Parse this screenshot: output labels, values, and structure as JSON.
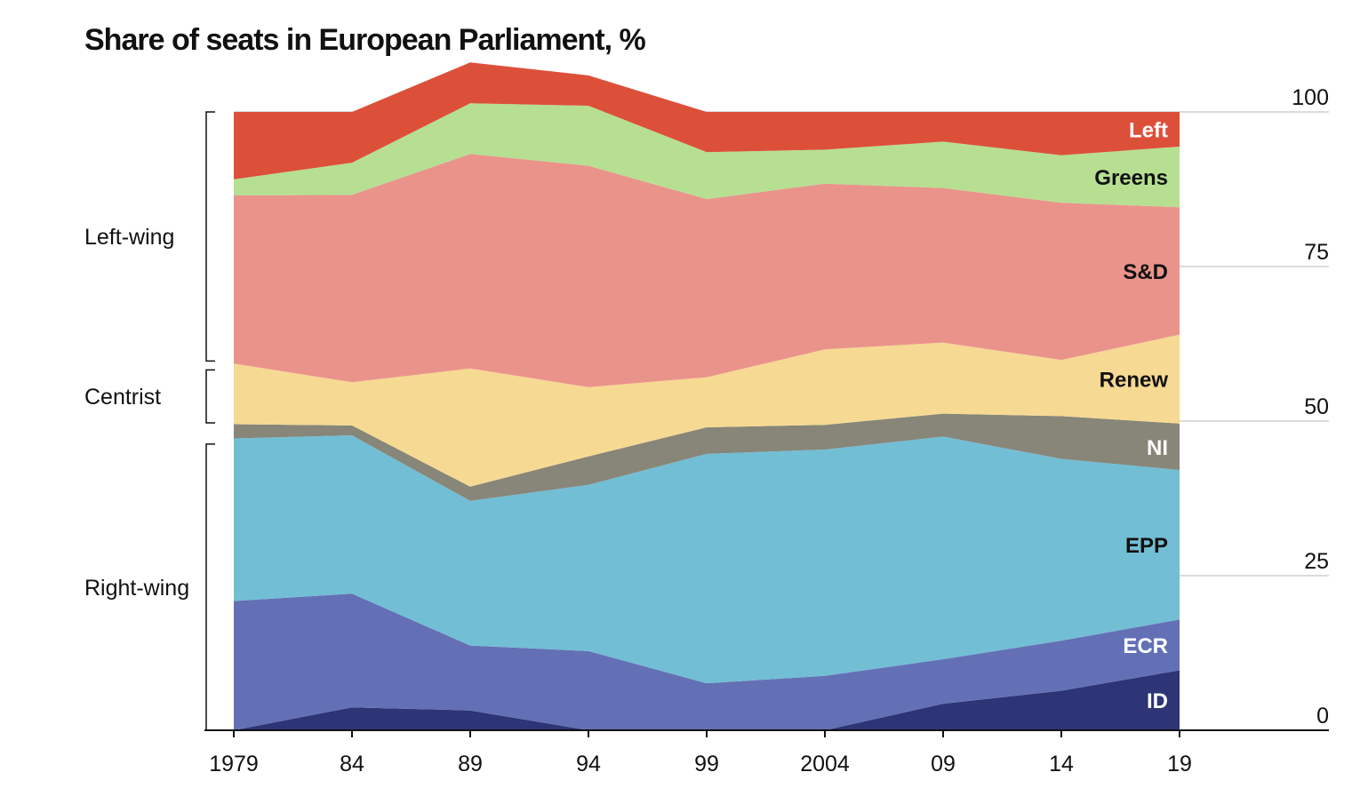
{
  "chart_data": {
    "type": "area",
    "stacked": true,
    "title": "Share of seats in European Parliament, %",
    "xlabel": "",
    "ylabel": "",
    "x": [
      1979,
      1984,
      1989,
      1994,
      1999,
      2004,
      2009,
      2014,
      2019
    ],
    "x_tick_labels": [
      "1979",
      "84",
      "89",
      "94",
      "99",
      "2004",
      "09",
      "14",
      "19"
    ],
    "ylim": [
      0,
      100
    ],
    "y_ticks": [
      0,
      25,
      50,
      75,
      100
    ],
    "y_axis_side": "right",
    "grid": true,
    "series": [
      {
        "name": "ID",
        "color": "#2d3576",
        "label_color": "#ffffff",
        "values": [
          0.0,
          3.7,
          3.2,
          0.0,
          0.0,
          0.0,
          4.3,
          6.4,
          9.7
        ]
      },
      {
        "name": "ECR",
        "color": "#6470b5",
        "label_color": "#ffffff",
        "values": [
          20.9,
          18.4,
          10.5,
          12.8,
          7.6,
          8.8,
          7.2,
          8.1,
          8.2
        ]
      },
      {
        "name": "EPP",
        "color": "#72bed4",
        "label_color": "#111111",
        "values": [
          26.3,
          25.6,
          23.4,
          26.9,
          37.1,
          36.6,
          36.0,
          29.4,
          24.2
        ]
      },
      {
        "name": "NI",
        "color": "#878678",
        "label_color": "#ffffff",
        "values": [
          2.3,
          1.6,
          2.3,
          4.6,
          4.3,
          4.0,
          3.7,
          6.9,
          7.5
        ]
      },
      {
        "name": "Renew",
        "color": "#f6d993",
        "label_color": "#111111",
        "values": [
          9.8,
          7.0,
          19.1,
          11.2,
          8.1,
          12.2,
          11.5,
          9.1,
          14.4
        ]
      },
      {
        "name": "S&D",
        "color": "#ea938b",
        "label_color": "#111111",
        "values": [
          27.2,
          30.3,
          34.7,
          35.8,
          28.8,
          26.8,
          25.0,
          25.4,
          20.6
        ]
      },
      {
        "name": "Greens",
        "color": "#b6df92",
        "label_color": "#111111",
        "values": [
          2.6,
          5.2,
          8.2,
          9.7,
          7.6,
          5.5,
          7.5,
          7.7,
          9.8
        ]
      },
      {
        "name": "Left",
        "color": "#dc5039",
        "label_color": "#ffffff",
        "values": [
          10.9,
          8.2,
          6.6,
          4.9,
          6.5,
          6.1,
          4.8,
          7.0,
          5.6
        ]
      }
    ],
    "groups": [
      {
        "name": "Left-wing",
        "from": 59,
        "to": 100
      },
      {
        "name": "Centrist",
        "from": 49,
        "to": 59
      },
      {
        "name": "Right-wing",
        "from": 0,
        "to": 47
      }
    ]
  }
}
